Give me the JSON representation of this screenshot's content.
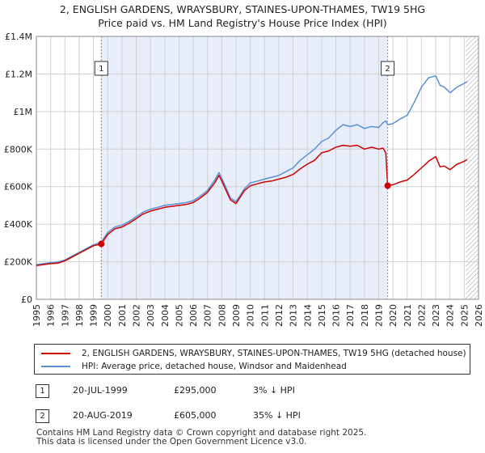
{
  "title": {
    "line1": "2, ENGLISH GARDENS, WRAYSBURY, STAINES-UPON-THAMES, TW19 5HG",
    "line2": "Price paid vs. HM Land Registry's House Price Index (HPI)"
  },
  "colors": {
    "price_paid": "#cc0000",
    "hpi": "#5b8fd6",
    "shade": "#e8eef9",
    "grid": "#d0d0d0",
    "marker_line": "#dd6666"
  },
  "chart_data": {
    "type": "line",
    "title": "2, ENGLISH GARDENS, WRAYSBURY, STAINES-UPON-THAMES, TW19 5HG — Price paid vs. HM Land Registry's House Price Index (HPI)",
    "xlabel": "",
    "ylabel": "",
    "xlim": [
      1995,
      2026
    ],
    "ylim": [
      0,
      1400000
    ],
    "grid": true,
    "x_ticks": [
      1995,
      1996,
      1997,
      1998,
      1999,
      2000,
      2001,
      2002,
      2003,
      2004,
      2005,
      2006,
      2007,
      2008,
      2009,
      2010,
      2011,
      2012,
      2013,
      2014,
      2015,
      2016,
      2017,
      2018,
      2019,
      2020,
      2021,
      2022,
      2023,
      2024,
      2025,
      2026
    ],
    "y_ticks": [
      {
        "value": 0,
        "label": "£0"
      },
      {
        "value": 200000,
        "label": "£200K"
      },
      {
        "value": 400000,
        "label": "£400K"
      },
      {
        "value": 600000,
        "label": "£600K"
      },
      {
        "value": 800000,
        "label": "£800K"
      },
      {
        "value": 1000000,
        "label": "£1M"
      },
      {
        "value": 1200000,
        "label": "£1.2M"
      },
      {
        "value": 1400000,
        "label": "£1.4M"
      }
    ],
    "shaded_ranges": [
      [
        1999.55,
        2019.63
      ]
    ],
    "hatched_from": 2025.1,
    "markers": [
      {
        "label": "1",
        "x": 1999.55,
        "y": 295000
      },
      {
        "label": "2",
        "x": 2019.63,
        "y": 605000
      }
    ],
    "series": [
      {
        "name": "price_paid",
        "x": [
          1995.0,
          1995.5,
          1996.0,
          1996.5,
          1997.0,
          1997.5,
          1998.0,
          1998.5,
          1999.0,
          1999.55,
          2000.0,
          2000.5,
          2001.0,
          2001.5,
          2002.0,
          2002.5,
          2003.0,
          2003.5,
          2004.0,
          2004.5,
          2005.0,
          2005.5,
          2006.0,
          2006.5,
          2007.0,
          2007.5,
          2007.8,
          2008.0,
          2008.3,
          2008.6,
          2009.0,
          2009.3,
          2009.6,
          2010.0,
          2010.5,
          2011.0,
          2011.5,
          2012.0,
          2012.5,
          2013.0,
          2013.5,
          2014.0,
          2014.5,
          2015.0,
          2015.5,
          2016.0,
          2016.5,
          2017.0,
          2017.5,
          2018.0,
          2018.5,
          2019.0,
          2019.3,
          2019.5,
          2019.63,
          2020.0,
          2020.5,
          2021.0,
          2021.5,
          2022.0,
          2022.5,
          2023.0,
          2023.3,
          2023.6,
          2024.0,
          2024.5,
          2025.0,
          2025.2
        ],
        "y": [
          180000,
          185000,
          190000,
          192000,
          205000,
          225000,
          245000,
          265000,
          285000,
          295000,
          345000,
          375000,
          385000,
          405000,
          430000,
          455000,
          470000,
          480000,
          490000,
          495000,
          500000,
          505000,
          515000,
          540000,
          570000,
          620000,
          660000,
          630000,
          580000,
          530000,
          510000,
          545000,
          580000,
          605000,
          615000,
          625000,
          630000,
          640000,
          650000,
          665000,
          695000,
          720000,
          740000,
          780000,
          790000,
          810000,
          820000,
          815000,
          820000,
          800000,
          810000,
          800000,
          805000,
          780000,
          605000,
          610000,
          625000,
          635000,
          665000,
          700000,
          735000,
          760000,
          705000,
          710000,
          690000,
          720000,
          735000,
          745000
        ]
      },
      {
        "name": "hpi",
        "x": [
          1995.0,
          1995.5,
          1996.0,
          1996.5,
          1997.0,
          1997.5,
          1998.0,
          1998.5,
          1999.0,
          1999.55,
          2000.0,
          2000.5,
          2001.0,
          2001.5,
          2002.0,
          2002.5,
          2003.0,
          2003.5,
          2004.0,
          2004.5,
          2005.0,
          2005.5,
          2006.0,
          2006.5,
          2007.0,
          2007.5,
          2007.8,
          2008.0,
          2008.3,
          2008.6,
          2009.0,
          2009.3,
          2009.6,
          2010.0,
          2010.5,
          2011.0,
          2011.5,
          2012.0,
          2012.5,
          2013.0,
          2013.5,
          2014.0,
          2014.5,
          2015.0,
          2015.5,
          2016.0,
          2016.5,
          2017.0,
          2017.5,
          2018.0,
          2018.5,
          2019.0,
          2019.3,
          2019.5,
          2019.63,
          2020.0,
          2020.5,
          2021.0,
          2021.5,
          2022.0,
          2022.5,
          2023.0,
          2023.3,
          2023.6,
          2024.0,
          2024.5,
          2025.0,
          2025.2
        ],
        "y": [
          185000,
          190000,
          195000,
          198000,
          210000,
          230000,
          250000,
          270000,
          290000,
          305000,
          355000,
          385000,
          395000,
          415000,
          440000,
          465000,
          480000,
          490000,
          500000,
          505000,
          510000,
          515000,
          525000,
          550000,
          580000,
          635000,
          675000,
          645000,
          595000,
          540000,
          520000,
          555000,
          590000,
          620000,
          630000,
          640000,
          650000,
          660000,
          680000,
          700000,
          740000,
          770000,
          800000,
          840000,
          860000,
          900000,
          930000,
          920000,
          930000,
          910000,
          920000,
          915000,
          940000,
          950000,
          930000,
          935000,
          960000,
          980000,
          1050000,
          1130000,
          1180000,
          1190000,
          1140000,
          1130000,
          1100000,
          1130000,
          1150000,
          1160000
        ]
      }
    ]
  },
  "legend": {
    "price_paid": "2, ENGLISH GARDENS, WRAYSBURY, STAINES-UPON-THAMES, TW19 5HG (detached house)",
    "hpi": "HPI: Average price, detached house, Windsor and Maidenhead"
  },
  "transactions": [
    {
      "num": "1",
      "date": "20-JUL-1999",
      "price": "£295,000",
      "hpi": "3% ↓ HPI"
    },
    {
      "num": "2",
      "date": "20-AUG-2019",
      "price": "£605,000",
      "hpi": "35% ↓ HPI"
    }
  ],
  "footer": {
    "line1": "Contains HM Land Registry data © Crown copyright and database right 2025.",
    "line2": "This data is licensed under the Open Government Licence v3.0."
  }
}
